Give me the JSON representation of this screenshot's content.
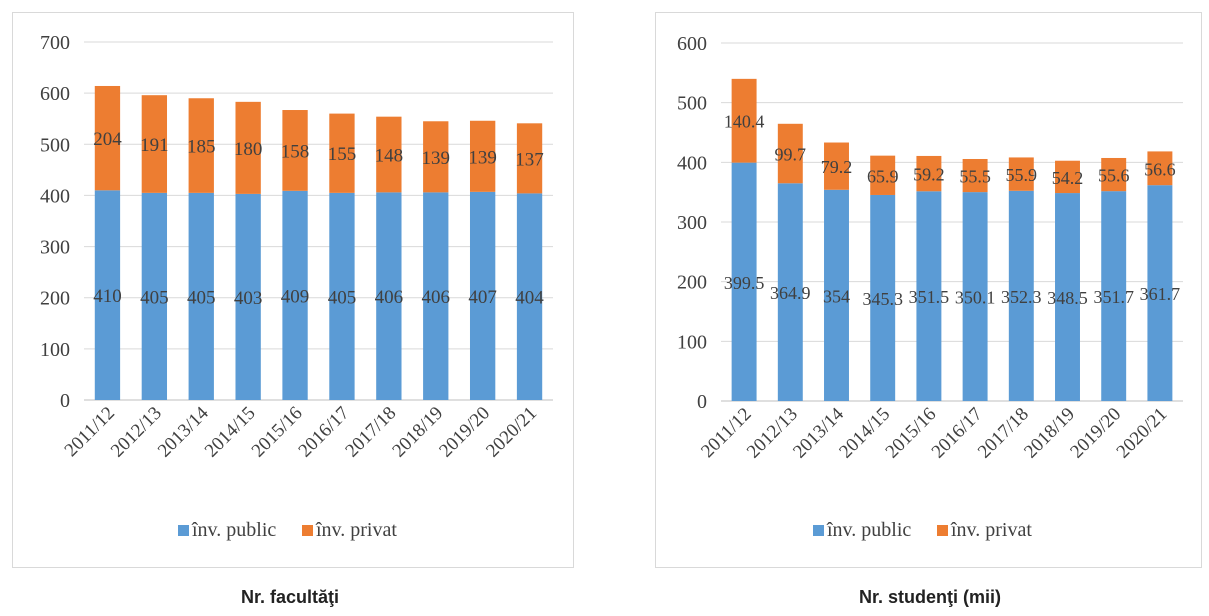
{
  "colors": {
    "public": "#5b9bd5",
    "private": "#ed7d31",
    "grid": "#d9d9d9",
    "axis": "#bfbfbf",
    "text": "#404040"
  },
  "captions": {
    "left": "Nr. facultăţi",
    "right": "Nr. studenţi (mii)"
  },
  "chart_data": [
    {
      "type": "bar",
      "stacked": true,
      "title": "",
      "categories": [
        "2011/12",
        "2012/13",
        "2013/14",
        "2014/15",
        "2015/16",
        "2016/17",
        "2017/18",
        "2018/19",
        "2019/20",
        "2020/21"
      ],
      "series": [
        {
          "name": "înv. public",
          "values": [
            410,
            405,
            405,
            403,
            409,
            405,
            406,
            406,
            407,
            404
          ],
          "labels": [
            "410",
            "405",
            "405",
            "403",
            "409",
            "405",
            "406",
            "406",
            "407",
            "404"
          ]
        },
        {
          "name": "înv. privat",
          "values": [
            204,
            191,
            185,
            180,
            158,
            155,
            148,
            139,
            139,
            137
          ],
          "labels": [
            "204",
            "191",
            "185",
            "180",
            "158",
            "155",
            "148",
            "139",
            "139",
            "137"
          ]
        }
      ],
      "ylim": [
        0,
        700
      ],
      "yticks": [
        "0",
        "100",
        "200",
        "300",
        "400",
        "500",
        "600",
        "700"
      ],
      "grid": true,
      "legend": "bottom"
    },
    {
      "type": "bar",
      "stacked": true,
      "title": "",
      "categories": [
        "2011/12",
        "2012/13",
        "2013/14",
        "2014/15",
        "2015/16",
        "2016/17",
        "2017/18",
        "2018/19",
        "2019/20",
        "2020/21"
      ],
      "series": [
        {
          "name": "înv. public",
          "values": [
            399.5,
            364.9,
            354,
            345.3,
            351.5,
            350.1,
            352.3,
            348.5,
            351.7,
            361.7
          ],
          "labels": [
            "399.5",
            "364.9",
            "354",
            "345.3",
            "351.5",
            "350.1",
            "352.3",
            "348.5",
            "351.7",
            "361.7"
          ]
        },
        {
          "name": "înv. privat",
          "values": [
            140.4,
            99.7,
            79.2,
            65.9,
            59.2,
            55.5,
            55.9,
            54.2,
            55.6,
            56.6
          ],
          "labels": [
            "140.4",
            "99.7",
            "79.2",
            "65.9",
            "59.2",
            "55.5",
            "55.9",
            "54.2",
            "55.6",
            "56.6"
          ]
        }
      ],
      "ylim": [
        0,
        600
      ],
      "yticks": [
        "0",
        "100",
        "200",
        "300",
        "400",
        "500",
        "600"
      ],
      "grid": true,
      "legend": "bottom"
    }
  ]
}
